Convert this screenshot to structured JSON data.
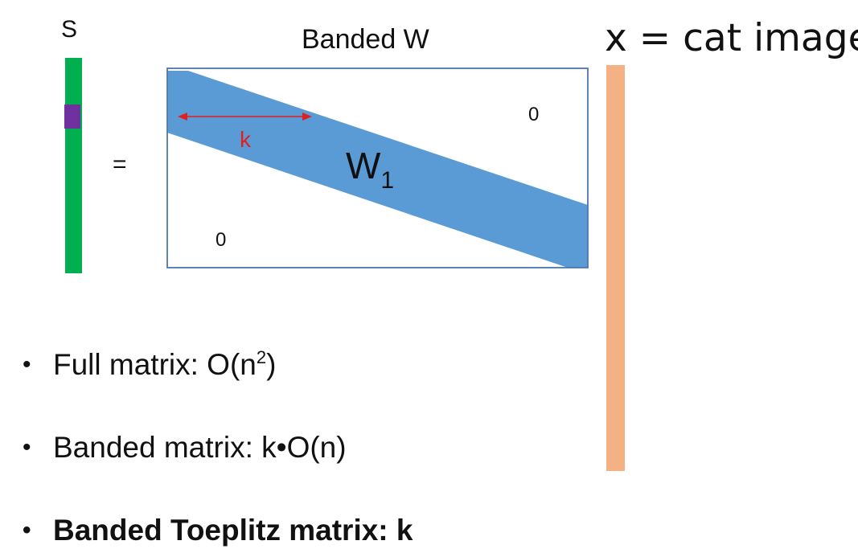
{
  "s_vector": {
    "label": "S",
    "bar_color": "#00b050",
    "highlight_color": "#7030a0"
  },
  "equals_sign": "=",
  "matrix": {
    "title": "Banded W",
    "band_label": "W",
    "band_label_subscript": "1",
    "band_color": "#5b9bd5",
    "border_color": "#4a72a8",
    "zero_upper": "0",
    "zero_lower": "0",
    "width_label": "k",
    "width_arrow_color": "#e02020"
  },
  "x_vector": {
    "label": "x = cat image",
    "bar_color": "#f4b183"
  },
  "bullets": [
    {
      "text": "Full matrix: O(n",
      "superscript": "2",
      "suffix": ")",
      "bold": false
    },
    {
      "text": "Banded matrix: k•O(n)",
      "bold": false
    },
    {
      "text": "Banded Toeplitz matrix: k",
      "bold": true
    }
  ],
  "bullet_symbol": "•"
}
